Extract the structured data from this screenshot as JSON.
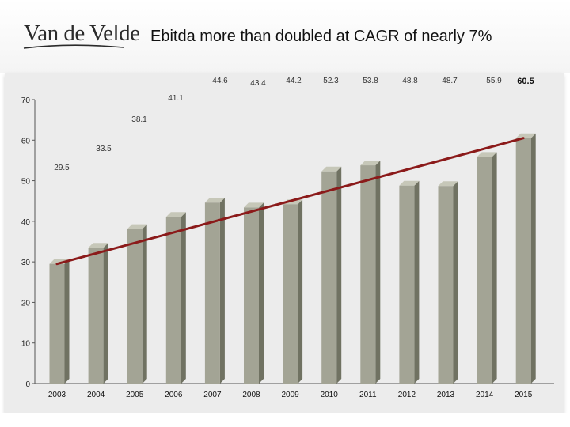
{
  "header": {
    "logo_text": "Van de Velde",
    "title": "Ebitda more than doubled at CAGR of nearly 7%"
  },
  "colors": {
    "bar_front": "#a3a495",
    "bar_side": "#707262",
    "bar_top": "#c6c7b8",
    "trend_line": "#8b1a1a",
    "axis": "#555555",
    "text": "#222222"
  },
  "chart_data": {
    "type": "bar",
    "title": "Ebitda more than doubled at CAGR of nearly 7%",
    "xlabel": "",
    "ylabel": "",
    "categories": [
      "2003",
      "2004",
      "2005",
      "2006",
      "2007",
      "2008",
      "2009",
      "2010",
      "2011",
      "2012",
      "2013",
      "2014",
      "2015"
    ],
    "values": [
      29.5,
      33.5,
      38.1,
      41.1,
      44.6,
      43.4,
      44.2,
      52.3,
      53.8,
      48.8,
      48.7,
      55.9,
      60.5
    ],
    "data_labels": [
      "29.5",
      "33.5",
      "38.1",
      "41.1",
      "44.6",
      "43.4",
      "44.2",
      "52.3",
      "53.8",
      "48.8",
      "48.7",
      "55.9",
      "60.5"
    ],
    "ylim": [
      0,
      70
    ],
    "yticks": [
      0,
      10,
      20,
      30,
      40,
      50,
      60,
      70
    ],
    "grid": false,
    "legend": "none",
    "trend_line": {
      "from_value": 29.5,
      "to_value": 60.5
    }
  }
}
